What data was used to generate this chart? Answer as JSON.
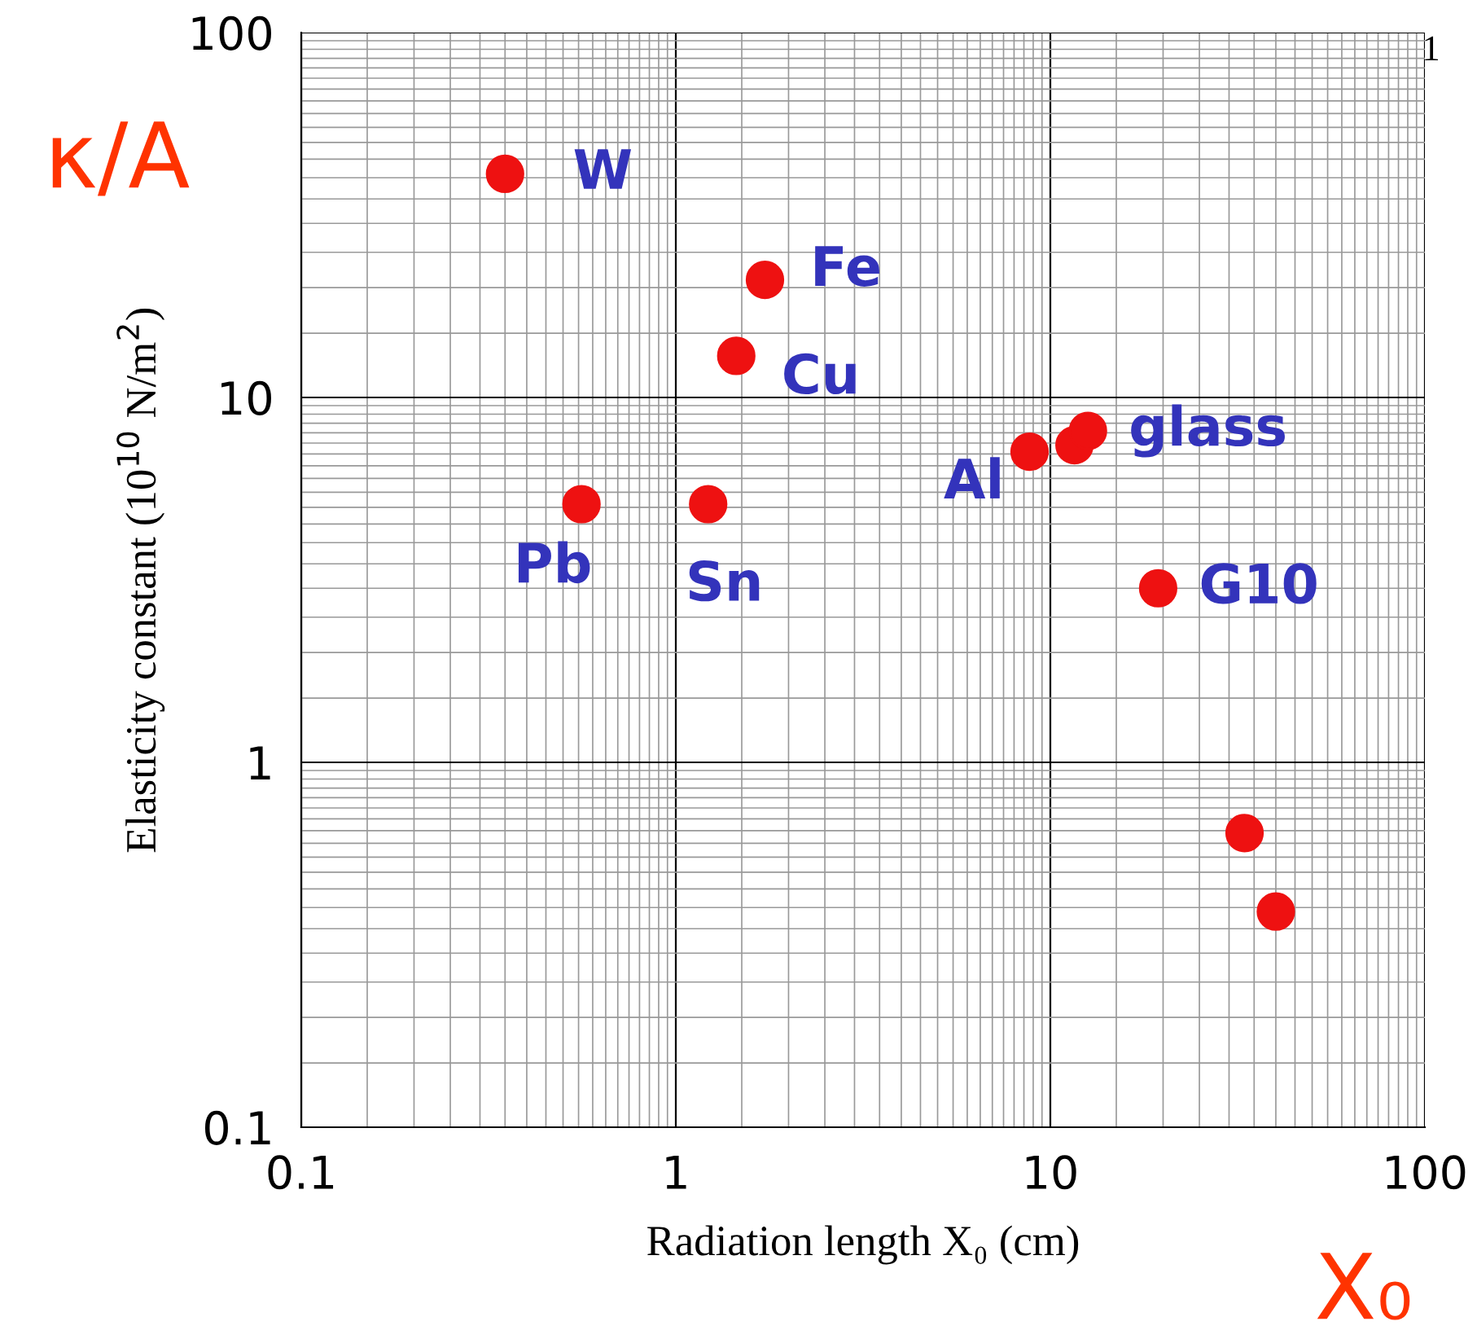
{
  "chart_data": {
    "type": "scatter",
    "xlabel": "Radiation length X₀ (cm)",
    "ylabel": "Elasticity constant (10$^{10}$ N/m$^{2}$)",
    "log": "xy",
    "xlim": [
      0.1,
      100
    ],
    "ylim": [
      0.1,
      100
    ],
    "xticks": [
      0.1,
      1,
      10,
      100
    ],
    "yticks": [
      0.1,
      1,
      10,
      100
    ],
    "grid": true,
    "marker": "circle",
    "series": [
      {
        "color": "#ee1111",
        "x": [
          0.35,
          1.73,
          1.45,
          0.56,
          1.22,
          8.8,
          11.6,
          12.6,
          19.4,
          33,
          40
        ],
        "values": [
          41,
          21,
          13,
          5.1,
          5.1,
          7.1,
          7.4,
          8.1,
          3.0,
          0.64,
          0.39
        ]
      }
    ],
    "annotations": [
      {
        "text": "W",
        "x": 0.35,
        "y": 41
      },
      {
        "text": "Fe",
        "x": 1.73,
        "y": 21
      },
      {
        "text": "Cu",
        "x": 1.45,
        "y": 13
      },
      {
        "text": "Pb",
        "x": 0.56,
        "y": 5.1
      },
      {
        "text": "Sn",
        "x": 1.22,
        "y": 5.1
      },
      {
        "text": "Al",
        "x": 8.8,
        "y": 7.1
      },
      {
        "text": "glass",
        "x": 12.6,
        "y": 8.1
      },
      {
        "text": "G10",
        "x": 19.4,
        "y": 3.0
      },
      "κ/A",
      "X₀",
      "1"
    ]
  }
}
